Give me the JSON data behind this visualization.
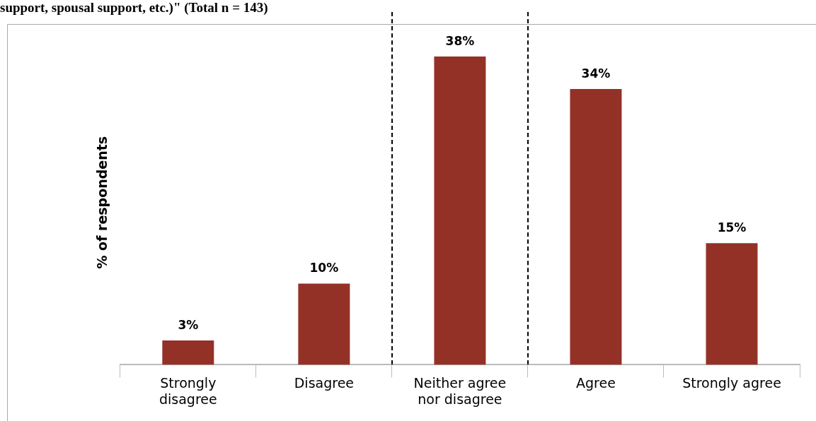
{
  "chart_data": {
    "type": "bar",
    "title": "support, spousal support, etc.)\"  (Total n = 143)",
    "ylabel": "% of respondents",
    "categories": [
      "Strongly disagree",
      "Disagree",
      "Neither agree nor disagree",
      "Agree",
      "Strongly agree"
    ],
    "values": [
      3,
      10,
      38,
      34,
      15
    ],
    "value_labels": [
      "3%",
      "10%",
      "38%",
      "34%",
      "15%"
    ],
    "color": "#943126",
    "grid": false,
    "legend": false
  }
}
